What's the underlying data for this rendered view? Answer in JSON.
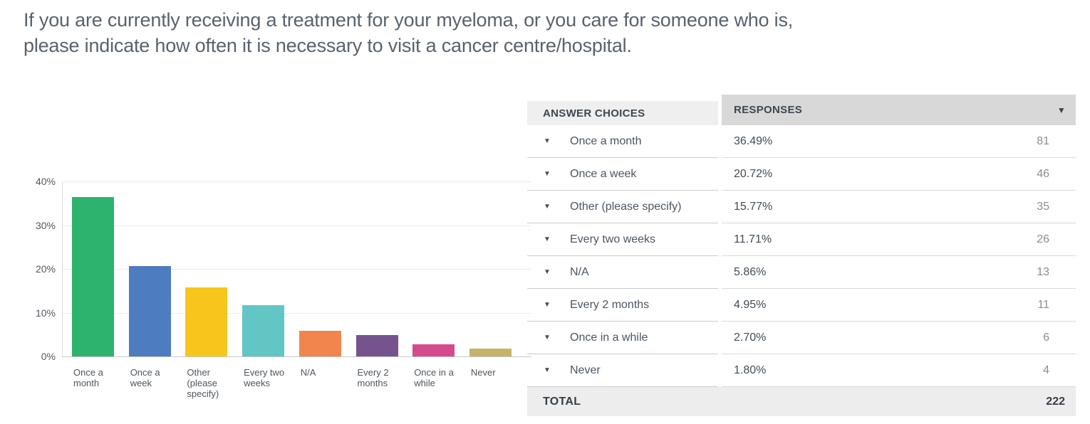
{
  "question": {
    "text": "If you are currently receiving a treatment for your myeloma, or you care for someone who is, please indicate how often it is necessary to visit a cancer centre/hospital."
  },
  "chart_data": {
    "type": "bar",
    "title": "",
    "xlabel": "",
    "ylabel": "",
    "categories": [
      "Once a month",
      "Once a week",
      "Other (please specify)",
      "Every two weeks",
      "N/A",
      "Every 2 months",
      "Once in a while",
      "Never"
    ],
    "values": [
      36.49,
      20.72,
      15.77,
      11.71,
      5.86,
      4.95,
      2.7,
      1.8
    ],
    "bar_colors": [
      "#2db36e",
      "#4d7cc0",
      "#f8c51d",
      "#62c6c4",
      "#f2854d",
      "#75538d",
      "#d54a8c",
      "#c5b368"
    ],
    "y_ticks": [
      {
        "value": 0,
        "label": "0%"
      },
      {
        "value": 10,
        "label": "10%"
      },
      {
        "value": 20,
        "label": "20%"
      },
      {
        "value": 30,
        "label": "30%"
      },
      {
        "value": 40,
        "label": "40%"
      }
    ],
    "ylim": [
      0,
      40
    ],
    "grid": true,
    "legend": false
  },
  "table": {
    "headers": {
      "answer": "ANSWER CHOICES",
      "responses": "RESPONSES"
    },
    "sort_caret_icon": "▼",
    "row_caret_icon": "▼",
    "rows": [
      {
        "label": "Once a month",
        "percent": "36.49%",
        "count": "81"
      },
      {
        "label": "Once a week",
        "percent": "20.72%",
        "count": "46"
      },
      {
        "label": "Other (please specify)",
        "percent": "15.77%",
        "count": "35"
      },
      {
        "label": "Every two weeks",
        "percent": "11.71%",
        "count": "26"
      },
      {
        "label": "N/A",
        "percent": "5.86%",
        "count": "13"
      },
      {
        "label": "Every 2 months",
        "percent": "4.95%",
        "count": "11"
      },
      {
        "label": "Once in a while",
        "percent": "2.70%",
        "count": "6"
      },
      {
        "label": "Never",
        "percent": "1.80%",
        "count": "4"
      }
    ],
    "total": {
      "label": "TOTAL",
      "value": "222"
    }
  }
}
